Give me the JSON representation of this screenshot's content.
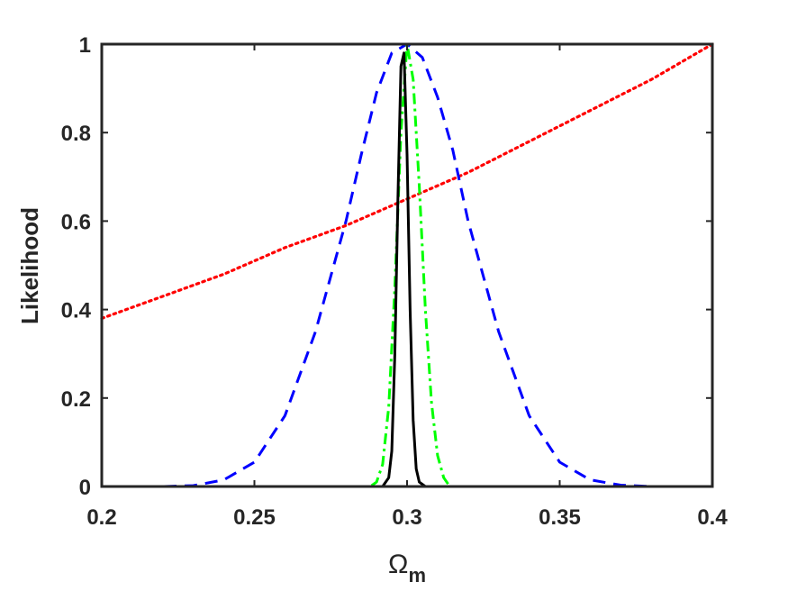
{
  "chart_data": {
    "type": "line",
    "title": "",
    "xlabel": "Ω",
    "xlabel_subscript": "m",
    "ylabel": "Likelihood",
    "xlim": [
      0.2,
      0.4
    ],
    "ylim": [
      0,
      1
    ],
    "grid": false,
    "x_ticks": [
      0.2,
      0.25,
      0.3,
      0.35,
      0.4
    ],
    "x_tick_labels": [
      "0.2",
      "0.25",
      "0.3",
      "0.35",
      "0.4"
    ],
    "y_ticks": [
      0,
      0.2,
      0.4,
      0.6,
      0.8,
      1
    ],
    "y_tick_labels": [
      "0",
      "0.2",
      "0.4",
      "0.6",
      "0.8",
      "1"
    ],
    "series": [
      {
        "style": "dotted",
        "color": "#ff0000",
        "x": [
          0.2,
          0.22,
          0.24,
          0.26,
          0.28,
          0.3,
          0.32,
          0.34,
          0.36,
          0.38,
          0.4
        ],
        "y": [
          0.38,
          0.43,
          0.48,
          0.54,
          0.59,
          0.65,
          0.71,
          0.78,
          0.85,
          0.92,
          1.0
        ]
      },
      {
        "style": "dashed",
        "color": "#0000ff",
        "x": [
          0.2,
          0.22,
          0.23,
          0.24,
          0.25,
          0.26,
          0.27,
          0.28,
          0.285,
          0.29,
          0.295,
          0.3,
          0.305,
          0.31,
          0.315,
          0.32,
          0.33,
          0.34,
          0.35,
          0.36,
          0.37,
          0.38,
          0.4
        ],
        "y": [
          0,
          0,
          0.002,
          0.015,
          0.055,
          0.16,
          0.35,
          0.6,
          0.75,
          0.89,
          0.98,
          1.0,
          0.97,
          0.88,
          0.76,
          0.6,
          0.35,
          0.16,
          0.055,
          0.015,
          0.003,
          0,
          0
        ]
      },
      {
        "style": "dash-dot",
        "color": "#00ff00",
        "x": [
          0.2,
          0.288,
          0.29,
          0.292,
          0.294,
          0.296,
          0.298,
          0.3,
          0.302,
          0.304,
          0.306,
          0.308,
          0.31,
          0.312,
          0.314,
          0.4
        ],
        "y": [
          0,
          0,
          0.01,
          0.05,
          0.18,
          0.45,
          0.8,
          1.0,
          0.92,
          0.68,
          0.4,
          0.19,
          0.07,
          0.02,
          0,
          0
        ]
      },
      {
        "style": "solid",
        "color": "#000000",
        "x": [
          0.2,
          0.292,
          0.294,
          0.295,
          0.296,
          0.297,
          0.298,
          0.299,
          0.3,
          0.301,
          0.302,
          0.303,
          0.304,
          0.306,
          0.4
        ],
        "y": [
          0,
          0,
          0.02,
          0.08,
          0.3,
          0.65,
          0.95,
          0.98,
          0.75,
          0.4,
          0.15,
          0.04,
          0.01,
          0,
          0
        ]
      }
    ]
  }
}
